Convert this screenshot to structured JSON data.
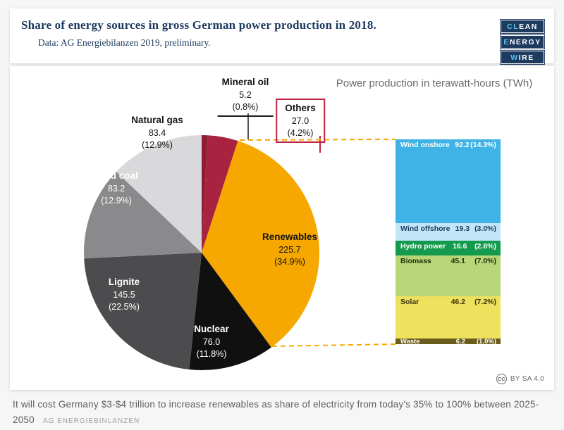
{
  "header": {
    "title": "Share of energy sources in gross German power production in 2018.",
    "subtitle": "Data: AG Energiebilanzen 2019, preliminary.",
    "logo": [
      {
        "hl": "CL",
        "rest": "EAN"
      },
      {
        "hl": "E",
        "rest": "NERGY"
      },
      {
        "hl": "W",
        "rest": "IRE"
      }
    ]
  },
  "chart": {
    "unit_label": "Power production in terawatt-hours (TWh)"
  },
  "chart_data": {
    "type": "pie",
    "title": "Share of energy sources in gross German power production in 2018.",
    "unit": "TWh",
    "slices": [
      {
        "label": "Mineral oil",
        "value": 5.2,
        "value_str": "5.2",
        "pct": 0.8,
        "pct_str": "(0.8%)",
        "color": "#8f1d31",
        "label_placement": "outside"
      },
      {
        "label": "Others",
        "value": 27.0,
        "value_str": "27.0",
        "pct": 4.2,
        "pct_str": "(4.2%)",
        "color": "#a82340",
        "label_placement": "outside-box"
      },
      {
        "label": "Renewables",
        "value": 225.7,
        "value_str": "225.7",
        "pct": 34.9,
        "pct_str": "(34.9%)",
        "color": "#f6a800",
        "label_placement": "inside"
      },
      {
        "label": "Nuclear",
        "value": 76.0,
        "value_str": "76.0",
        "pct": 11.8,
        "pct_str": "(11.8%)",
        "color": "#101010",
        "label_placement": "inside"
      },
      {
        "label": "Lignite",
        "value": 145.5,
        "value_str": "145.5",
        "pct": 22.5,
        "pct_str": "(22.5%)",
        "color": "#4c4c4e",
        "label_placement": "inside"
      },
      {
        "label": "Hard coal",
        "value": 83.2,
        "value_str": "83.2",
        "pct": 12.9,
        "pct_str": "(12.9%)",
        "color": "#8a8a8c",
        "label_placement": "inside"
      },
      {
        "label": "Natural gas",
        "value": 83.4,
        "value_str": "83.4",
        "pct": 12.9,
        "pct_str": "(12.9%)",
        "color": "#d9d9db",
        "label_placement": "outside"
      }
    ],
    "bar": {
      "total": 225.7,
      "segments": [
        {
          "label": "Wind onshore",
          "value": 92.2,
          "value_str": "92.2",
          "pct": 14.3,
          "pct_str": "(14.3%)",
          "color": "#3fb3e5",
          "text_color": "#ffffff"
        },
        {
          "label": "Wind offshore",
          "value": 19.3,
          "value_str": "19.3",
          "pct": 3.0,
          "pct_str": "(3.0%)",
          "color": "#c2e6f8",
          "text_color": "#1c3a5e"
        },
        {
          "label": "Hydro power",
          "value": 16.6,
          "value_str": "16.6",
          "pct": 2.6,
          "pct_str": "(2.6%)",
          "color": "#149a4c",
          "text_color": "#ffffff"
        },
        {
          "label": "Biomass",
          "value": 45.1,
          "value_str": "45.1",
          "pct": 7.0,
          "pct_str": "(7.0%)",
          "color": "#b7d678",
          "text_color": "#20300f"
        },
        {
          "label": "Solar",
          "value": 46.2,
          "value_str": "46.2",
          "pct": 7.2,
          "pct_str": "(7.2%)",
          "color": "#eee15e",
          "text_color": "#3a3510"
        },
        {
          "label": "Waste",
          "value": 6.2,
          "value_str": "6.2",
          "pct": 1.0,
          "pct_str": "(1.0%)",
          "color": "#6a5d1b",
          "text_color": "#ffffff"
        }
      ]
    },
    "accent_colors": {
      "renewables_orange": "#f6a800",
      "others_red": "#c0243f",
      "navy": "#1d3a5f"
    }
  },
  "badge": {
    "cc_label": "CC",
    "license": "BY SA 4.0"
  },
  "footer": {
    "caption": "It will cost Germany $3-$4 trillion to increase renewables as share of electricity from today's 35% to 100% between 2025-2050",
    "source": "AG ENERGIEBINLANZEN"
  }
}
